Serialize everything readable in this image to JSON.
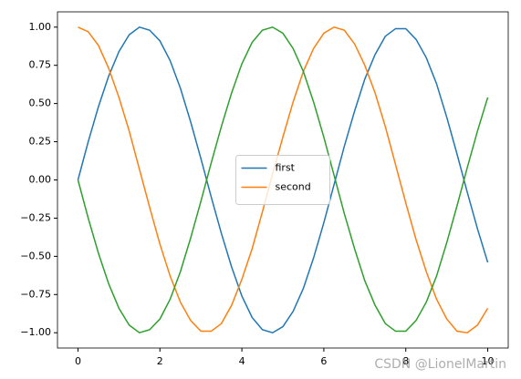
{
  "chart_data": {
    "type": "line",
    "x": [
      0,
      0.25,
      0.5,
      0.75,
      1,
      1.25,
      1.5,
      1.75,
      2,
      2.25,
      2.5,
      2.75,
      3,
      3.25,
      3.5,
      3.75,
      4,
      4.25,
      4.5,
      4.75,
      5,
      5.25,
      5.5,
      5.75,
      6,
      6.25,
      6.5,
      6.75,
      7,
      7.25,
      7.5,
      7.75,
      8,
      8.25,
      8.5,
      8.75,
      9,
      9.25,
      9.5,
      9.75,
      10
    ],
    "series": [
      {
        "name": "first",
        "color": "#1f77b4",
        "values": [
          0,
          0.25,
          0.48,
          0.68,
          0.84,
          0.95,
          1.0,
          0.98,
          0.91,
          0.78,
          0.6,
          0.38,
          0.14,
          -0.11,
          -0.35,
          -0.57,
          -0.76,
          -0.9,
          -0.98,
          -1.0,
          -0.96,
          -0.86,
          -0.71,
          -0.51,
          -0.28,
          -0.03,
          0.22,
          0.45,
          0.66,
          0.82,
          0.94,
          0.99,
          0.99,
          0.92,
          0.8,
          0.63,
          0.41,
          0.17,
          -0.08,
          -0.32,
          -0.54
        ]
      },
      {
        "name": "second",
        "color": "#ff7f0e",
        "values": [
          1.0,
          0.97,
          0.88,
          0.73,
          0.54,
          0.32,
          0.07,
          -0.18,
          -0.42,
          -0.63,
          -0.8,
          -0.92,
          -0.99,
          -0.99,
          -0.94,
          -0.82,
          -0.65,
          -0.45,
          -0.21,
          0.04,
          0.28,
          0.51,
          0.71,
          0.86,
          0.96,
          1.0,
          0.98,
          0.89,
          0.75,
          0.57,
          0.35,
          0.1,
          -0.15,
          -0.39,
          -0.6,
          -0.78,
          -0.91,
          -0.99,
          -1.0,
          -0.95,
          -0.84
        ]
      },
      {
        "color": "#2ca02c",
        "values": [
          0,
          -0.25,
          -0.48,
          -0.68,
          -0.84,
          -0.95,
          -1.0,
          -0.98,
          -0.91,
          -0.78,
          -0.6,
          -0.38,
          -0.14,
          0.11,
          0.35,
          0.57,
          0.76,
          0.9,
          0.98,
          1.0,
          0.96,
          0.86,
          0.71,
          0.51,
          0.28,
          0.03,
          -0.22,
          -0.45,
          -0.66,
          -0.82,
          -0.94,
          -0.99,
          -0.99,
          -0.92,
          -0.8,
          -0.63,
          -0.41,
          -0.17,
          0.08,
          0.32,
          0.54
        ]
      }
    ],
    "xlim": [
      -0.5,
      10.5
    ],
    "ylim": [
      -1.1,
      1.1
    ],
    "xticks": [
      0,
      2,
      4,
      6,
      8,
      10
    ],
    "yticks": [
      {
        "value": 1,
        "label": "1.00"
      },
      {
        "value": 0.75,
        "label": "0.75"
      },
      {
        "value": 0.5,
        "label": "0.50"
      },
      {
        "value": 0.25,
        "label": "0.25"
      },
      {
        "value": 0,
        "label": "0.00"
      },
      {
        "value": -0.25,
        "label": "−0.25"
      },
      {
        "value": -0.5,
        "label": "−0.50"
      },
      {
        "value": -0.75,
        "label": "−0.75"
      },
      {
        "value": -1,
        "label": "−1.00"
      }
    ],
    "legend": "center",
    "annotations": [
      "CSDN @LionelMartin"
    ]
  }
}
